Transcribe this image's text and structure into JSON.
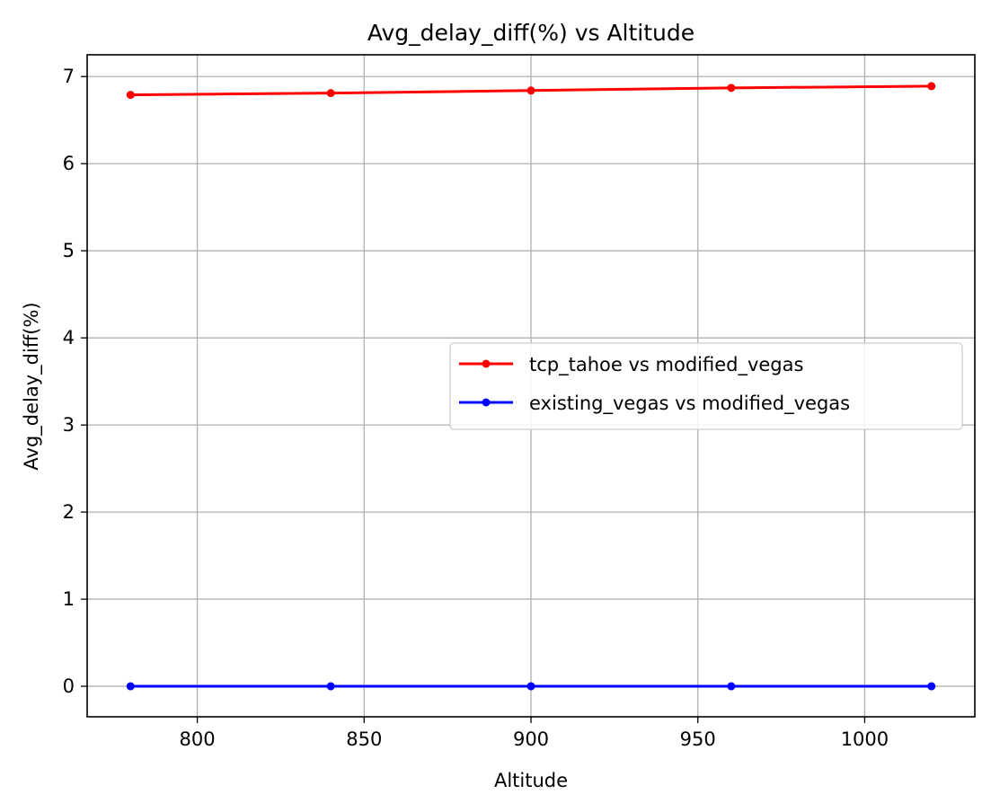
{
  "chart_data": {
    "type": "line",
    "title": "Avg_delay_diff(%) vs Altitude",
    "xlabel": "Altitude",
    "ylabel": "Avg_delay_diff(%)",
    "xlim": [
      767,
      1033
    ],
    "ylim": [
      -0.35,
      7.25
    ],
    "xticks": [
      800,
      850,
      900,
      950,
      1000
    ],
    "yticks": [
      0,
      1,
      2,
      3,
      4,
      5,
      6,
      7
    ],
    "grid": true,
    "legend_position": "center-right",
    "x": [
      780,
      840,
      900,
      960,
      1020
    ],
    "series": [
      {
        "name": "tcp_tahoe vs modified_vegas",
        "color": "#ff0000",
        "marker": "circle",
        "values": [
          6.79,
          6.81,
          6.84,
          6.87,
          6.89
        ]
      },
      {
        "name": "existing_vegas vs modified_vegas",
        "color": "#0000ff",
        "marker": "circle",
        "values": [
          0.0,
          0.0,
          0.0,
          0.0,
          0.0
        ]
      }
    ]
  },
  "colors": {
    "grid": "#b0b0b0",
    "axis": "#000000",
    "legend_border": "#cccccc"
  }
}
